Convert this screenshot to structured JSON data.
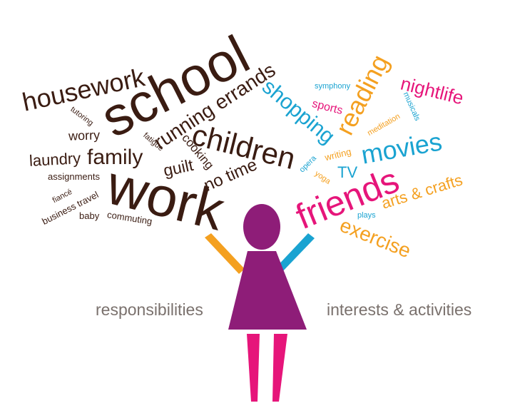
{
  "colors": {
    "responsibility": "#3a1c12",
    "pink": "#e6157a",
    "blue": "#1aa3d1",
    "orange": "#f4a020",
    "purple": "#8e1d78",
    "caption": "#7a716d"
  },
  "figure": {
    "icon": "person-figure-icon",
    "head_color": "#8e1d78",
    "dress_color": "#8e1d78",
    "legs_color": "#e6157a",
    "left_arm_color": "#f4a020",
    "right_arm_color": "#1aa3d1"
  },
  "captions": {
    "left": "responsibilities",
    "right": "interests & activities"
  },
  "responsibilities": [
    {
      "text": "school",
      "tone": "responsibility"
    },
    {
      "text": "work",
      "tone": "responsibility"
    },
    {
      "text": "housework",
      "tone": "responsibility"
    },
    {
      "text": "running errands",
      "tone": "responsibility"
    },
    {
      "text": "children",
      "tone": "responsibility"
    },
    {
      "text": "family",
      "tone": "responsibility"
    },
    {
      "text": "laundry",
      "tone": "responsibility"
    },
    {
      "text": "worry",
      "tone": "responsibility"
    },
    {
      "text": "tutoring",
      "tone": "responsibility"
    },
    {
      "text": "fatigue",
      "tone": "responsibility"
    },
    {
      "text": "cooking",
      "tone": "responsibility"
    },
    {
      "text": "guilt",
      "tone": "responsibility"
    },
    {
      "text": "no time",
      "tone": "responsibility"
    },
    {
      "text": "assignments",
      "tone": "responsibility"
    },
    {
      "text": "fiancé",
      "tone": "responsibility"
    },
    {
      "text": "business travel",
      "tone": "responsibility"
    },
    {
      "text": "baby",
      "tone": "responsibility"
    },
    {
      "text": "commuting",
      "tone": "responsibility"
    }
  ],
  "interests": [
    {
      "text": "shopping",
      "tone": "blue"
    },
    {
      "text": "reading",
      "tone": "orange"
    },
    {
      "text": "nightlife",
      "tone": "pink"
    },
    {
      "text": "symphony",
      "tone": "blue"
    },
    {
      "text": "sports",
      "tone": "pink"
    },
    {
      "text": "musicals",
      "tone": "blue"
    },
    {
      "text": "meditation",
      "tone": "orange"
    },
    {
      "text": "movies",
      "tone": "blue"
    },
    {
      "text": "writing",
      "tone": "orange"
    },
    {
      "text": "opera",
      "tone": "blue"
    },
    {
      "text": "yoga",
      "tone": "orange"
    },
    {
      "text": "TV",
      "tone": "blue"
    },
    {
      "text": "friends",
      "tone": "pink"
    },
    {
      "text": "arts & crafts",
      "tone": "orange"
    },
    {
      "text": "plays",
      "tone": "blue"
    },
    {
      "text": "exercise",
      "tone": "orange"
    }
  ]
}
